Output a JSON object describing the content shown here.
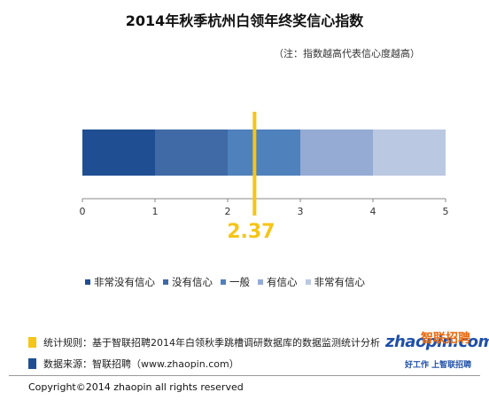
{
  "header": {
    "title": "2014年秋季杭州白领年终奖信心指数",
    "note": "（注：指数越高代表信心度越高）"
  },
  "chart_data": {
    "type": "bar",
    "orientation": "horizontal-stacked",
    "categories": [
      "非常没有信心",
      "没有信心",
      "一般",
      "有信心",
      "非常有信心"
    ],
    "segments": [
      {
        "name": "非常没有信心",
        "start": 0,
        "end": 1,
        "color": "#1f4f92"
      },
      {
        "name": "没有信心",
        "start": 1,
        "end": 2,
        "color": "#3f6aa6"
      },
      {
        "name": "一般",
        "start": 2,
        "end": 3,
        "color": "#4f81bd"
      },
      {
        "name": "有信心",
        "start": 3,
        "end": 4,
        "color": "#95abd4"
      },
      {
        "name": "非常有信心",
        "start": 4,
        "end": 5,
        "color": "#bbc8e2"
      }
    ],
    "xlim": [
      0,
      5
    ],
    "xticks": [
      "0",
      "1",
      "2",
      "3",
      "4",
      "5"
    ],
    "marker": {
      "value": 2.37,
      "label": "2.37",
      "color": "#f5c518"
    },
    "grid": false,
    "legend_position": "bottom"
  },
  "footer": {
    "rule_text": "统计规则：基于智联招聘2014年白领秋季跳槽调研数据库的数据监测统计分析",
    "rule_color": "#f5c518",
    "source_text": "数据来源：智联招聘（www.zhaopin.com）",
    "source_color": "#1f4f92",
    "copyright": "Copyright©2014 zhaopin all rights reserved"
  },
  "logo": {
    "name": "zhaopin.com",
    "cn": "智联招聘",
    "slogan": "好工作 上智联招聘"
  }
}
